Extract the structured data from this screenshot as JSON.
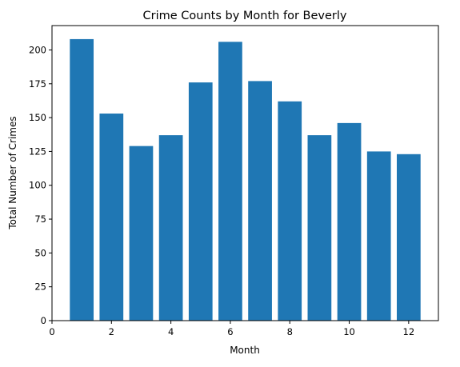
{
  "chart_data": {
    "type": "bar",
    "title": "Crime Counts by Month for Beverly",
    "xlabel": "Month",
    "ylabel": "Total Number of Crimes",
    "x": [
      1,
      2,
      3,
      4,
      5,
      6,
      7,
      8,
      9,
      10,
      11,
      12
    ],
    "values": [
      208,
      153,
      129,
      137,
      176,
      206,
      177,
      162,
      137,
      146,
      125,
      123
    ],
    "xlim": [
      0,
      13
    ],
    "ylim": [
      0,
      218
    ],
    "xticks": [
      "0",
      "2",
      "4",
      "6",
      "8",
      "10",
      "12"
    ],
    "yticks": [
      "0",
      "25",
      "50",
      "75",
      "100",
      "125",
      "150",
      "175",
      "200"
    ],
    "grid": false,
    "legend": "none",
    "colors": {
      "bar": "#1f77b4",
      "axis": "#000000",
      "background": "#ffffff"
    }
  }
}
